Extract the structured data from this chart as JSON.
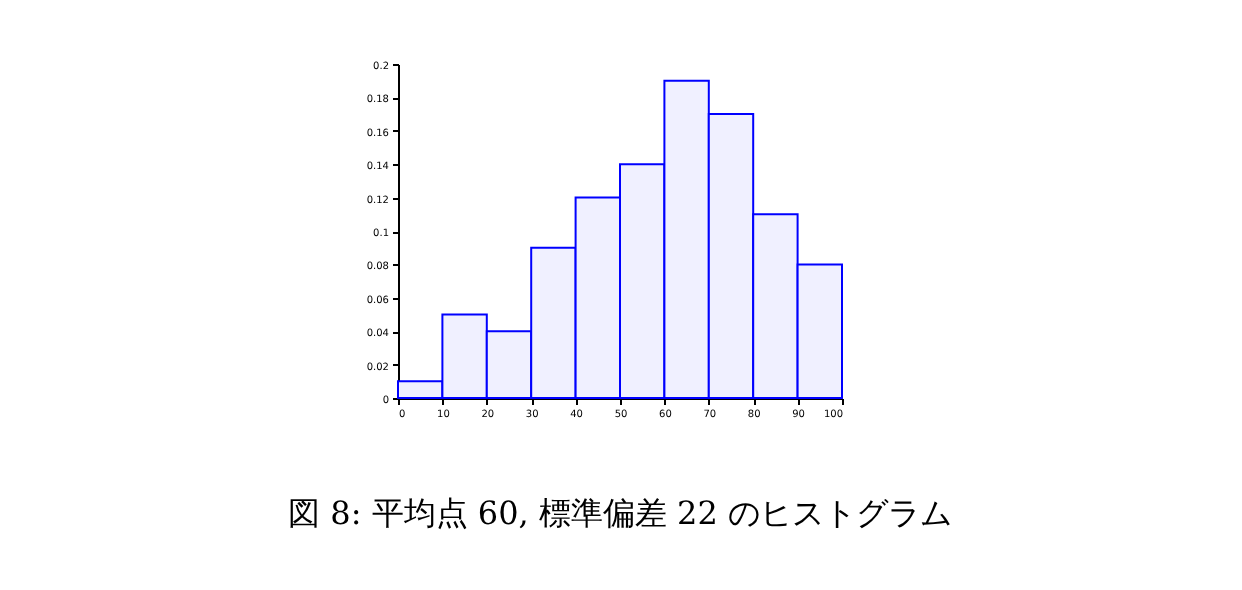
{
  "chart_data": {
    "type": "histogram",
    "annotations": [
      "図 8: 平均点 60, 標準偏差 22 のヒストグラム"
    ],
    "bins": [
      0,
      10,
      20,
      30,
      40,
      50,
      60,
      70,
      80,
      90,
      100
    ],
    "values": [
      0.01,
      0.05,
      0.04,
      0.09,
      0.12,
      0.14,
      0.19,
      0.17,
      0.11,
      0.08
    ],
    "color": "#0000ff",
    "xlim": [
      0,
      100
    ],
    "xticks": [
      0,
      10,
      20,
      30,
      40,
      50,
      60,
      70,
      80,
      90,
      100
    ],
    "ylim": [
      0,
      0.2
    ],
    "yticks": [
      0,
      0.02,
      0.04,
      0.06,
      0.08,
      0.1,
      0.12,
      0.14,
      0.16,
      0.18,
      0.2
    ],
    "grid": false
  }
}
